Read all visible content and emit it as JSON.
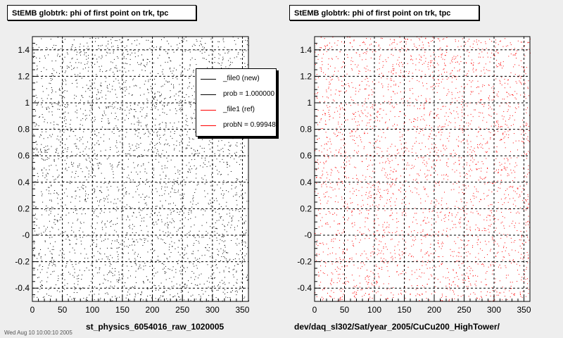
{
  "chart_data": [
    {
      "type": "scatter",
      "title": "StEMB globtrk: phi of first point on trk, tpc",
      "xlabel": "st_physics_6054016_raw_1020005",
      "ylabel": "",
      "xlim": [
        0,
        360
      ],
      "ylim": [
        -0.5,
        1.5
      ],
      "x_ticks": [
        "0",
        "50",
        "100",
        "150",
        "200",
        "250",
        "300",
        "350"
      ],
      "y_ticks": [
        "-0.4",
        "-0.2",
        "-0",
        "0.2",
        "0.4",
        "0.6",
        "0.8",
        "1",
        "1.2",
        "1.4"
      ],
      "grid": true,
      "series": [
        {
          "name": "_file0 (new)",
          "color": "#000000",
          "distribution": "uniform",
          "points": 3000
        }
      ],
      "legend": {
        "placement": "top-right",
        "entries": [
          {
            "label": "_file0 (new)",
            "color": "#000000"
          },
          {
            "label": "prob = 1.000000",
            "color": "#000000"
          },
          {
            "label": "_file1 (ref)",
            "color": "#ff0000"
          },
          {
            "label": "probN = 0.999484",
            "color": "#ff0000"
          }
        ]
      }
    },
    {
      "type": "scatter",
      "title": "StEMB globtrk: phi of first point on trk, tpc",
      "xlabel": "dev/daq_sl302/Sat/year_2005/CuCu200_HighTower/",
      "ylabel": "",
      "xlim": [
        0,
        360
      ],
      "ylim": [
        -0.5,
        1.5
      ],
      "x_ticks": [
        "0",
        "50",
        "100",
        "150",
        "200",
        "250",
        "300",
        "350"
      ],
      "y_ticks": [
        "-0.4",
        "-0.2",
        "-0",
        "0.2",
        "0.4",
        "0.6",
        "0.8",
        "1",
        "1.2",
        "1.4"
      ],
      "grid": true,
      "series": [
        {
          "name": "_file1 (ref)",
          "color": "#ff0000",
          "distribution": "uniform",
          "points": 3000
        }
      ]
    }
  ],
  "footer_stamp": "Wed Aug 10 10:00:10 2005"
}
